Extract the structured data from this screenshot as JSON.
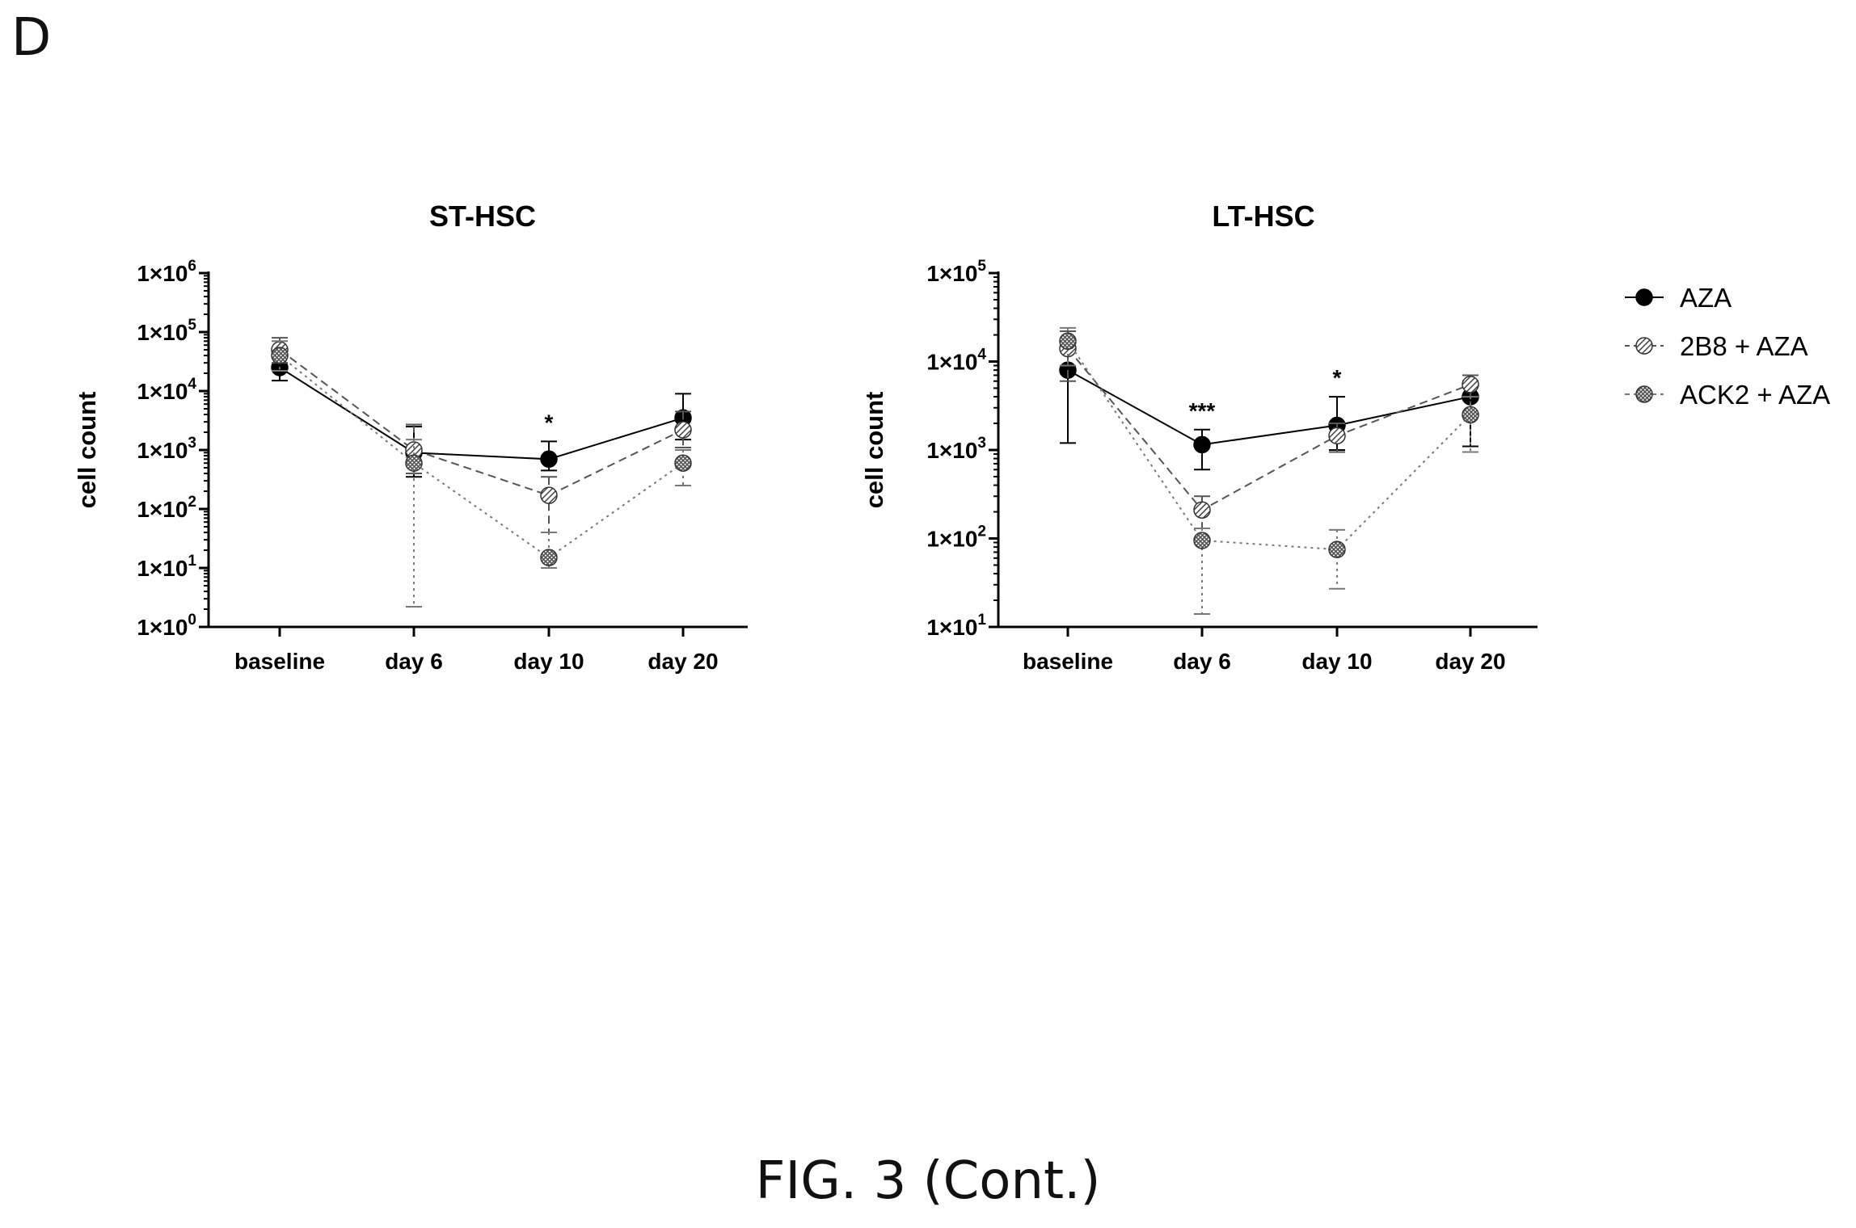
{
  "panel_letter": "D",
  "caption": "FIG. 3 (Cont.)",
  "legend": [
    {
      "label": "AZA",
      "marker": "filled",
      "color": "#000000",
      "dash": ""
    },
    {
      "label": "2B8 + AZA",
      "marker": "hatched",
      "color": "#555555",
      "dash": "10 6"
    },
    {
      "label": "ACK2 + AZA",
      "marker": "crosshatch",
      "color": "#777777",
      "dash": "3 5"
    }
  ],
  "chart_data": [
    {
      "type": "line",
      "title": "ST-HSC",
      "ylabel": "cell count",
      "xlabel": "",
      "yscale": "log",
      "ylim": [
        1,
        1000000
      ],
      "categories": [
        "baseline",
        "day 6",
        "day 10",
        "day 20"
      ],
      "yticks": [
        {
          "base": "1×10",
          "exp": "0"
        },
        {
          "base": "1×10",
          "exp": "1"
        },
        {
          "base": "1×10",
          "exp": "2"
        },
        {
          "base": "1×10",
          "exp": "3"
        },
        {
          "base": "1×10",
          "exp": "4"
        },
        {
          "base": "1×10",
          "exp": "5"
        },
        {
          "base": "1×10",
          "exp": "6"
        }
      ],
      "annotations": [
        {
          "category": "day 10",
          "text": "*"
        }
      ],
      "series": [
        {
          "name": "AZA",
          "values": [
            25000,
            900,
            700,
            3500
          ],
          "err_hi": [
            38000,
            2500,
            1400,
            9000
          ],
          "err_lo": [
            15000,
            350,
            450,
            1500
          ]
        },
        {
          "name": "2B8 + AZA",
          "values": [
            50000,
            1000,
            170,
            2200
          ],
          "err_hi": [
            80000,
            2700,
            350,
            4500
          ],
          "err_lo": [
            30000,
            400,
            40,
            1100
          ]
        },
        {
          "name": "ACK2 + AZA",
          "values": [
            40000,
            600,
            15,
            600
          ],
          "err_hi": [
            70000,
            1500,
            40,
            1000
          ],
          "err_lo": [
            22000,
            2.2,
            10,
            250
          ]
        }
      ]
    },
    {
      "type": "line",
      "title": "LT-HSC",
      "ylabel": "cell count",
      "xlabel": "",
      "yscale": "log",
      "ylim": [
        10,
        100000
      ],
      "categories": [
        "baseline",
        "day 6",
        "day 10",
        "day 20"
      ],
      "yticks": [
        {
          "base": "1×10",
          "exp": "1"
        },
        {
          "base": "1×10",
          "exp": "2"
        },
        {
          "base": "1×10",
          "exp": "3"
        },
        {
          "base": "1×10",
          "exp": "4"
        },
        {
          "base": "1×10",
          "exp": "5"
        }
      ],
      "annotations": [
        {
          "category": "day 6",
          "text": "***"
        },
        {
          "category": "day 10",
          "text": "*"
        }
      ],
      "series": [
        {
          "name": "AZA",
          "values": [
            8000,
            1150,
            1900,
            4000
          ],
          "err_hi": [
            14000,
            1700,
            4000,
            6000
          ],
          "err_lo": [
            1200,
            600,
            1000,
            1100
          ]
        },
        {
          "name": "2B8 + AZA",
          "values": [
            14000,
            210,
            1450,
            5500
          ],
          "err_hi": [
            22000,
            300,
            2000,
            7000
          ],
          "err_lo": [
            6000,
            130,
            950,
            2500
          ]
        },
        {
          "name": "ACK2 + AZA",
          "values": [
            17000,
            95,
            75,
            2500
          ],
          "err_hi": [
            24000,
            130,
            125,
            4000
          ],
          "err_lo": [
            9000,
            14,
            27,
            950
          ]
        }
      ]
    }
  ]
}
